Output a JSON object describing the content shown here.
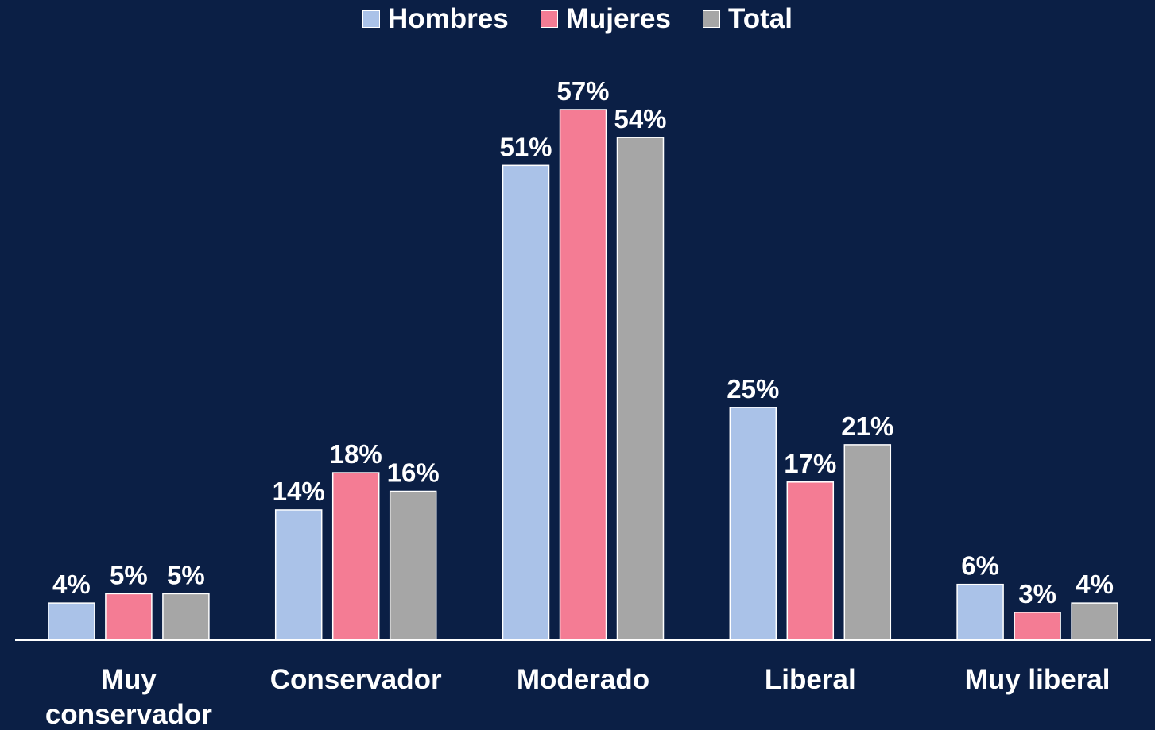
{
  "chart_data": {
    "type": "bar",
    "categories": [
      "Muy conservador",
      "Conservador",
      "Moderado",
      "Liberal",
      "Muy liberal"
    ],
    "series": [
      {
        "name": "Hombres",
        "color": "#aac2e8",
        "values": [
          4,
          14,
          51,
          25,
          6
        ],
        "value_labels": [
          "4%",
          "14%",
          "51%",
          "25%",
          "6%"
        ]
      },
      {
        "name": "Mujeres",
        "color": "#f47c94",
        "values": [
          5,
          18,
          57,
          17,
          3
        ],
        "value_labels": [
          "5%",
          "18%",
          "57%",
          "17%",
          "3%"
        ]
      },
      {
        "name": "Total",
        "color": "#a6a6a6",
        "values": [
          5,
          16,
          54,
          21,
          4
        ],
        "value_labels": [
          "5%",
          "16%",
          "54%",
          "21%",
          "4%"
        ]
      }
    ],
    "legend": "top"
  }
}
